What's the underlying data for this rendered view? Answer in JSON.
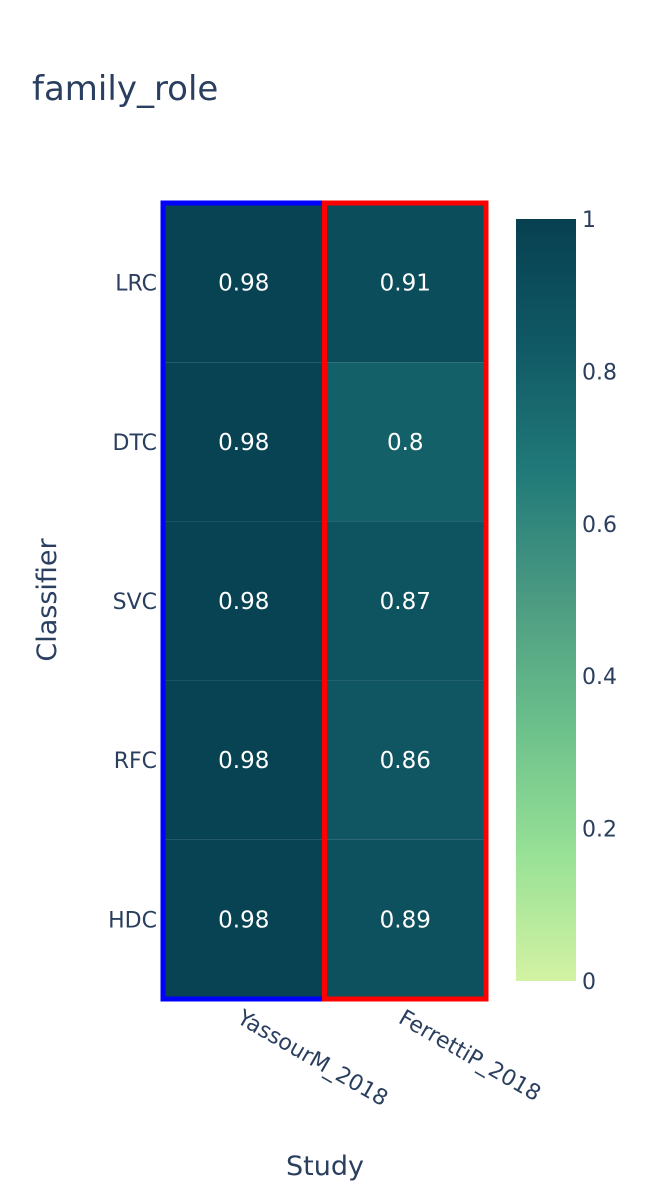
{
  "chart_data": {
    "type": "heatmap",
    "title": "family_role",
    "xlabel": "Study",
    "ylabel": "Classifier",
    "x": [
      "YassourM_2018",
      "FerrettiP_2018"
    ],
    "y": [
      "LRC",
      "DTC",
      "SVC",
      "RFC",
      "HDC"
    ],
    "z": [
      [
        0.98,
        0.91
      ],
      [
        0.98,
        0.8
      ],
      [
        0.98,
        0.87
      ],
      [
        0.98,
        0.86
      ],
      [
        0.98,
        0.89
      ]
    ],
    "text": [
      [
        "0.98",
        "0.91"
      ],
      [
        "0.98",
        "0.8"
      ],
      [
        "0.98",
        "0.87"
      ],
      [
        "0.98",
        "0.86"
      ],
      [
        "0.98",
        "0.89"
      ]
    ],
    "zmin": 0,
    "zmax": 1,
    "colorscale": "Emrld",
    "colorbar_ticks": [
      "0",
      "0.2",
      "0.4",
      "0.6",
      "0.8",
      "1"
    ],
    "column_highlights": [
      {
        "column": "YassourM_2018",
        "color": "#0000ff"
      },
      {
        "column": "FerrettiP_2018",
        "color": "#ff0000"
      }
    ]
  }
}
